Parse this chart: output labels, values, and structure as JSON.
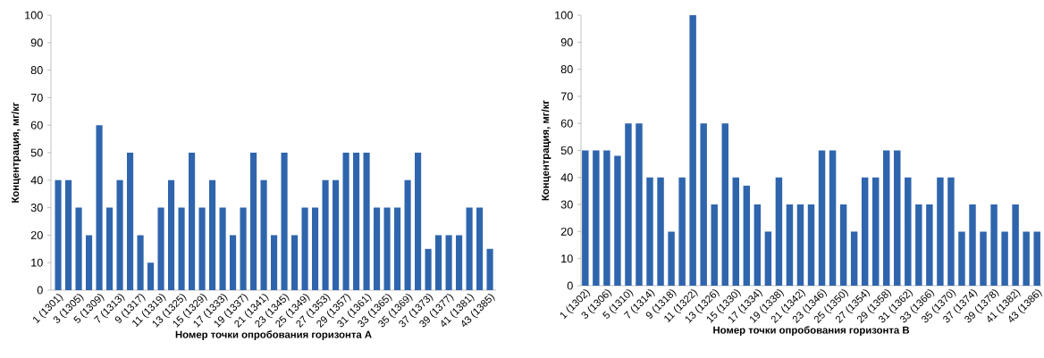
{
  "chart_data": [
    {
      "type": "bar",
      "xlabel": "Номер точки опробования горизонта A",
      "ylabel": "Концентрация, мг/кг",
      "color": "#2f65ad",
      "categories": [
        "1 (1301)",
        null,
        "3 (1305)",
        null,
        "5 (1309)",
        null,
        "7 (1313)",
        null,
        "9 (1317)",
        null,
        "11 (1319)",
        null,
        "13 (1325)",
        null,
        "15 (1329)",
        null,
        "17 (1333)",
        null,
        "19 (1337)",
        null,
        "21 (1341)",
        null,
        "23 (1345)",
        null,
        "25 (1349)",
        null,
        "27 (1353)",
        null,
        "29 (1357)",
        null,
        "31 (1361)",
        null,
        "33 (1365)",
        null,
        "35 (1369)",
        null,
        "37 (1373)",
        null,
        "39 (1377)",
        null,
        "41 (1381)",
        null,
        "43 (1385)"
      ],
      "values": [
        40,
        40,
        30,
        20,
        60,
        30,
        40,
        50,
        20,
        10,
        30,
        40,
        30,
        50,
        30,
        40,
        30,
        20,
        30,
        50,
        40,
        20,
        50,
        20,
        30,
        30,
        40,
        40,
        50,
        50,
        50,
        30,
        30,
        30,
        40,
        50,
        15,
        20,
        20,
        20,
        30,
        30,
        15
      ],
      "ylim": [
        0,
        100
      ],
      "yticks": [
        0,
        10,
        20,
        30,
        40,
        50,
        60,
        70,
        80,
        90,
        100
      ]
    },
    {
      "type": "bar",
      "xlabel": "Номер точки опробования горизонта B",
      "ylabel": "Концентрация, мг/кг",
      "color": "#2f65ad",
      "categories": [
        "1 (1302)",
        null,
        "3 (1306)",
        null,
        "5 (1310)",
        null,
        "7 (1314)",
        null,
        "9 (1318)",
        null,
        "11 (1322)",
        null,
        "13 (1326)",
        null,
        "15 (1330)",
        null,
        "17 (1334)",
        null,
        "19 (1338)",
        null,
        "21 (1342)",
        null,
        "23 (1346)",
        null,
        "25 (1350)",
        null,
        "27 (1354)",
        null,
        "29 (1358)",
        null,
        "31 (1362)",
        null,
        "33 (1366)",
        null,
        "35 (1370)",
        null,
        "37 (1374)",
        null,
        "39 (1378)",
        null,
        "41 (1382)",
        null,
        "43 (1386)"
      ],
      "values": [
        50,
        50,
        50,
        48,
        60,
        60,
        40,
        40,
        20,
        40,
        100,
        60,
        30,
        60,
        40,
        37,
        30,
        20,
        40,
        30,
        30,
        30,
        50,
        50,
        30,
        20,
        40,
        40,
        50,
        50,
        40,
        30,
        30,
        40,
        40,
        20,
        30,
        20,
        30,
        20,
        30,
        20,
        20
      ],
      "ylim": [
        0,
        100
      ],
      "yticks": [
        0,
        10,
        20,
        30,
        40,
        50,
        60,
        70,
        80,
        90,
        100
      ]
    }
  ]
}
